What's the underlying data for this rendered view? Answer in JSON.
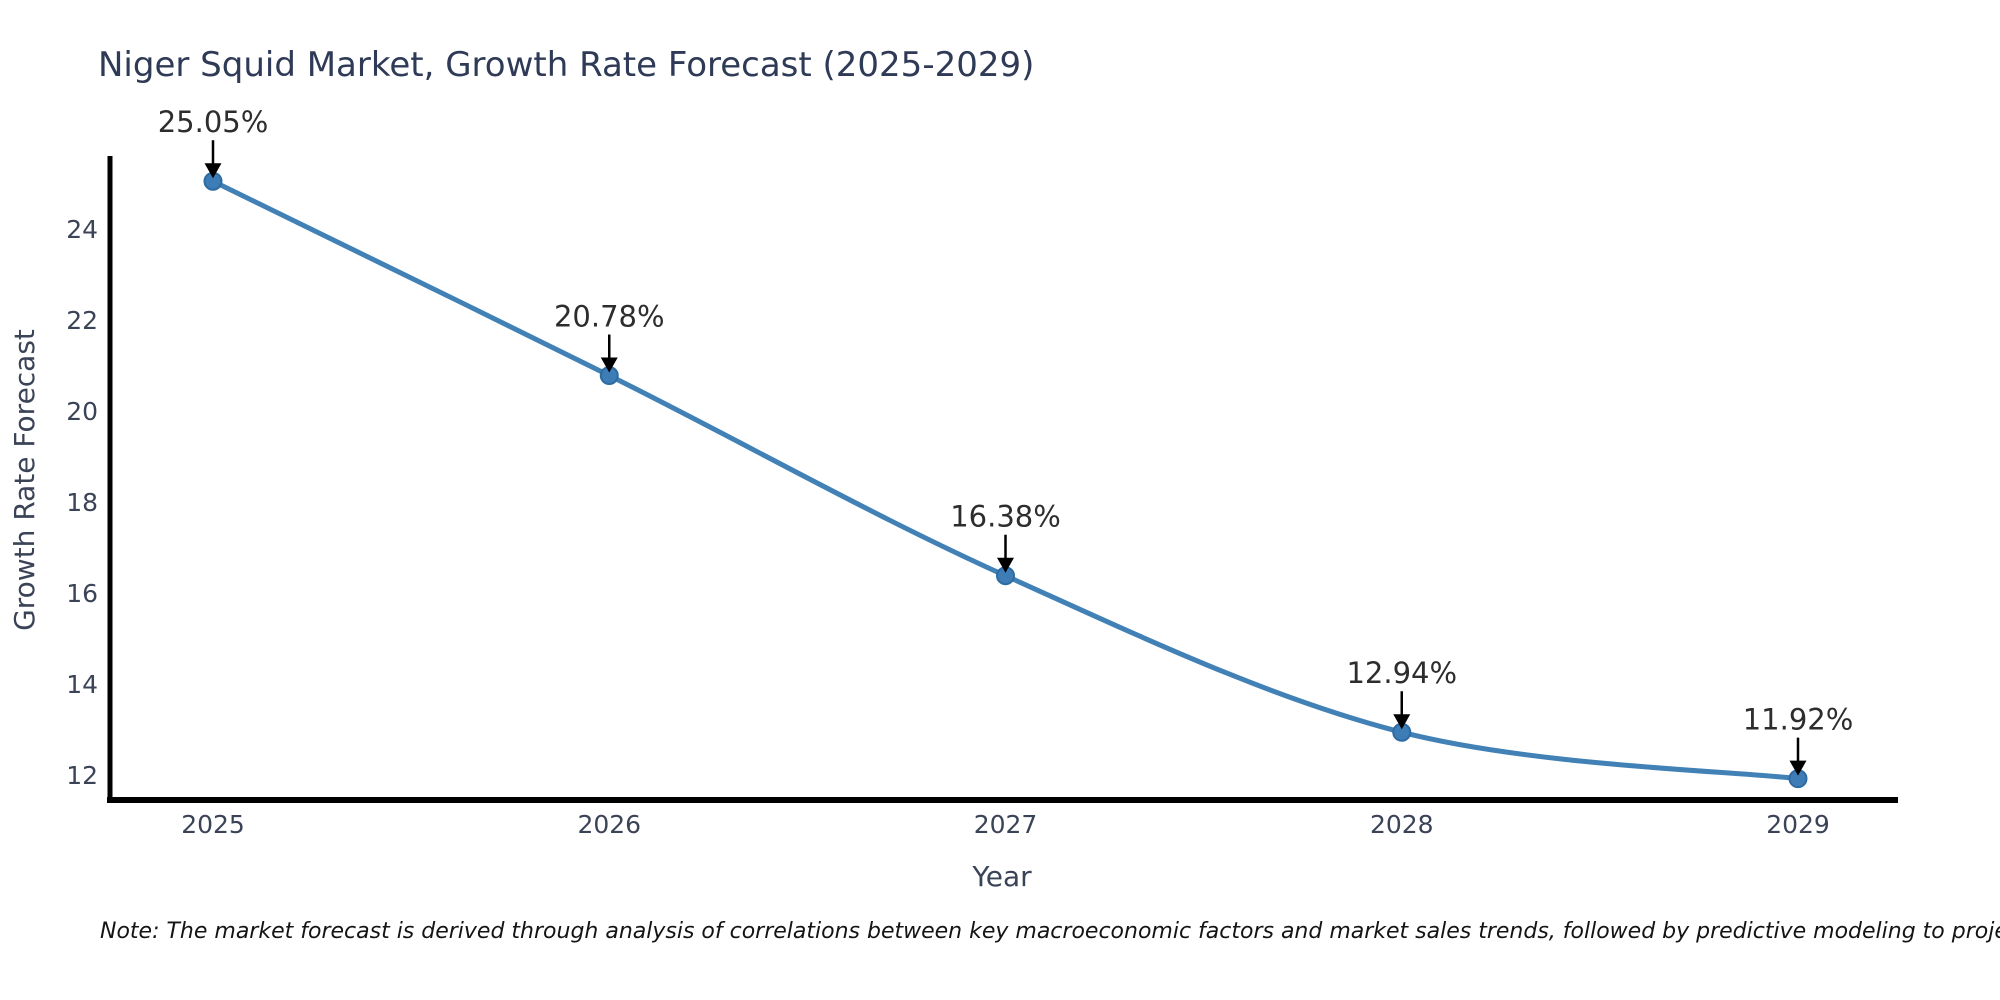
{
  "chart_data": {
    "type": "line",
    "title": "Niger Squid Market, Growth Rate Forecast (2025-2029)",
    "xlabel": "Year",
    "ylabel": "Growth Rate Forecast",
    "x": [
      2025,
      2026,
      2027,
      2028,
      2029
    ],
    "series": [
      {
        "name": "Growth Rate Forecast",
        "values": [
          25.05,
          20.78,
          16.38,
          12.94,
          11.92
        ]
      }
    ],
    "point_labels": [
      "25.05%",
      "20.78%",
      "16.38%",
      "12.94%",
      "11.92%"
    ],
    "y_ticks": [
      12,
      14,
      16,
      18,
      20,
      22,
      24
    ],
    "x_ticks": [
      "2025",
      "2026",
      "2027",
      "2028",
      "2029"
    ],
    "ylim": [
      11.45,
      25.6
    ],
    "grid": false,
    "legend_position": "none",
    "marker_style": "circle",
    "annotation_arrows": true,
    "colors": {
      "line": "#4181b6",
      "marker_fill": "#3e7cb5",
      "marker_edge": "#2d6ba3",
      "axis": "#000000",
      "tick_label": "#3b4357",
      "title": "#2e3a56",
      "annotation": "#2d2d2d"
    }
  },
  "note": "Note: The market forecast is derived through analysis of correlations between key macroeconomic factors and market sales trends, followed by predictive modeling to project future sales"
}
